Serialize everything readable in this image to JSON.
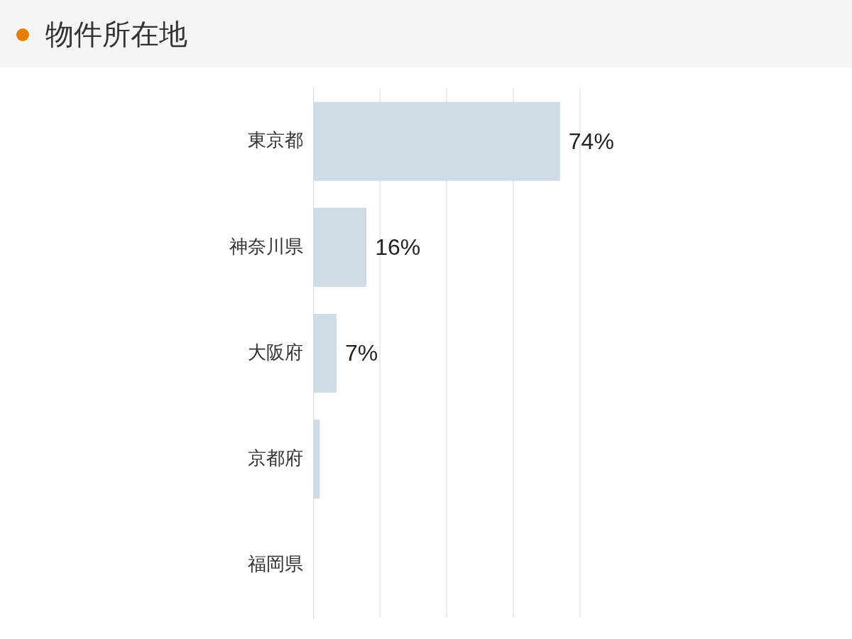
{
  "chart_data": {
    "type": "bar",
    "title": "物件所在地",
    "orientation": "horizontal",
    "categories": [
      "東京都",
      "神奈川県",
      "大阪府",
      "京都府",
      "福岡県"
    ],
    "values": [
      74,
      16,
      7,
      2,
      0
    ],
    "value_labels": [
      "74%",
      "16%",
      "7%",
      null,
      null
    ],
    "color": "#cfdce6",
    "xlim": [
      0,
      80
    ],
    "xticks": [
      {
        "value": 0,
        "label": null
      },
      {
        "value": 20,
        "label": null
      },
      {
        "value": 40,
        "label": null
      },
      {
        "value": 60,
        "label": null
      },
      {
        "value": 80,
        "label": null
      }
    ],
    "grid": "x",
    "tick_labels": "y",
    "legend": false
  }
}
